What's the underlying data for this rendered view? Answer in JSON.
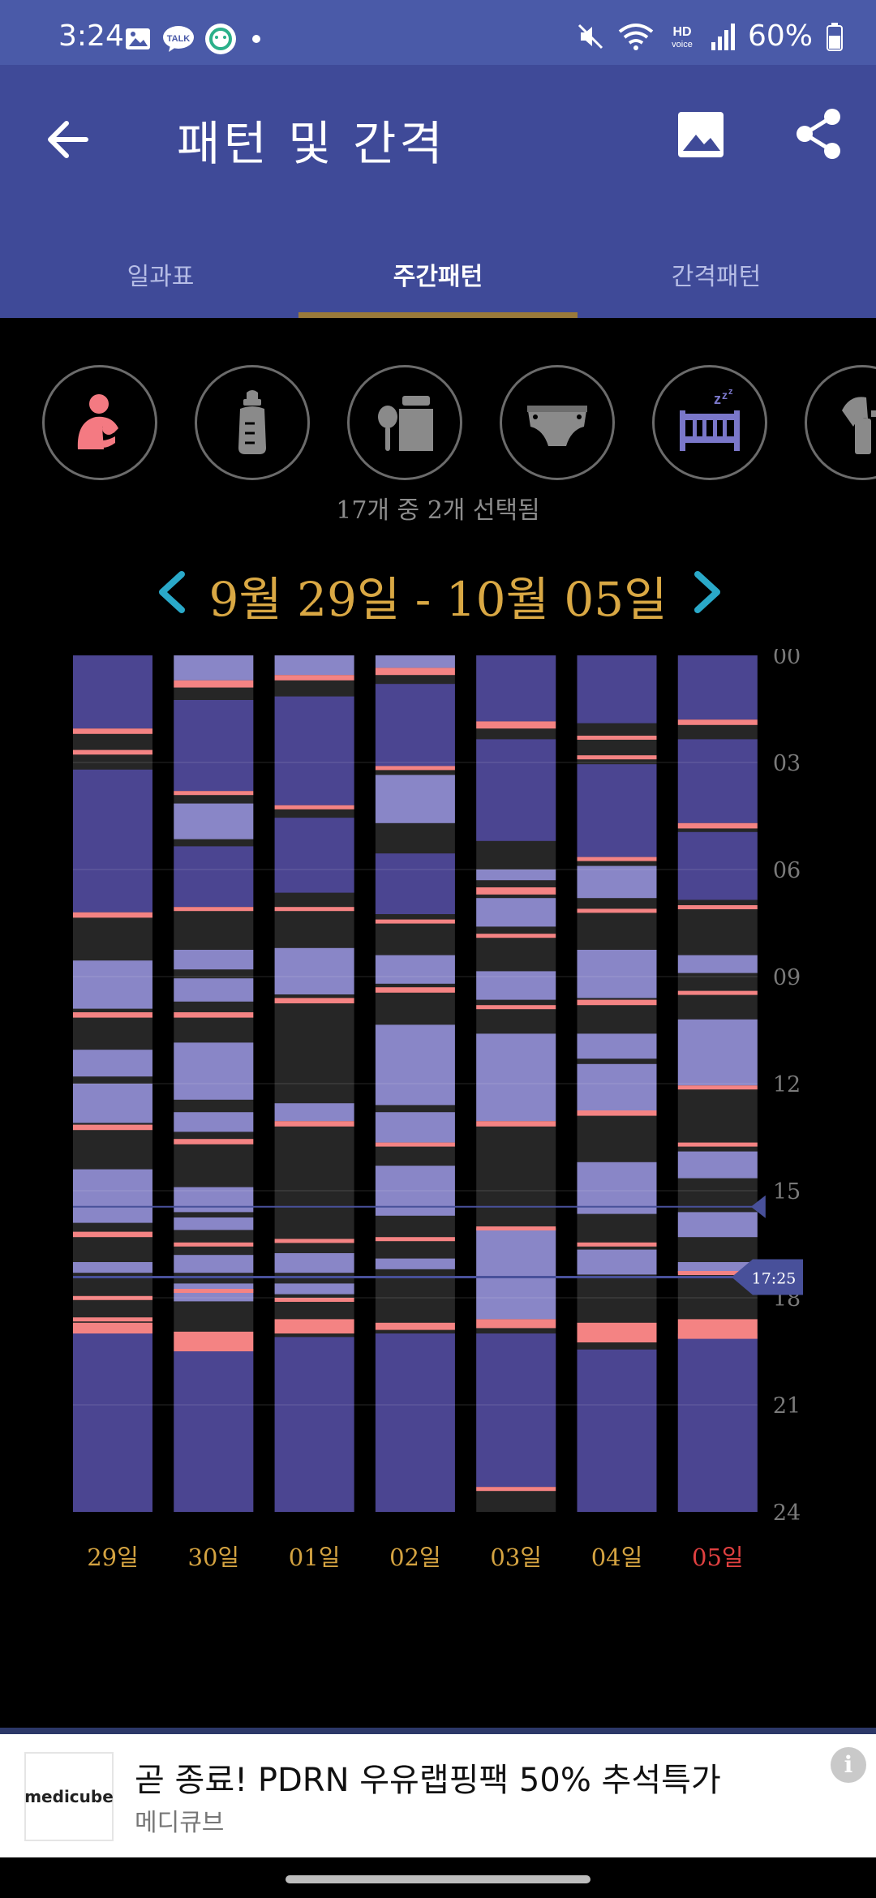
{
  "status_bar": {
    "time": "3:24",
    "talk_label": "TALK",
    "battery": "60%",
    "hd_label": "HD",
    "voice_label": "voice"
  },
  "app_bar": {
    "title": "패턴 및 간격"
  },
  "tabs": [
    {
      "label": "일과표",
      "active": false
    },
    {
      "label": "주간패턴",
      "active": true
    },
    {
      "label": "간격패턴",
      "active": false
    }
  ],
  "categories": {
    "icons": [
      "nursing-icon",
      "bottle-icon",
      "baby-food-icon",
      "diaper-icon",
      "sleep-crib-icon",
      "pump-icon"
    ],
    "selected_count_text": "17개 중 2개 선택됨"
  },
  "date_range": {
    "label": "9월 29일 - 10월 05일"
  },
  "chart_data": {
    "type": "bar",
    "categories": [
      "29일",
      "30일",
      "01일",
      "02일",
      "03일",
      "04일",
      "05일"
    ],
    "y_ticks": [
      "00",
      "03",
      "06",
      "09",
      "12",
      "15",
      "18",
      "21",
      "24"
    ],
    "ylim": [
      0,
      24
    ],
    "current_time_label": "17:25",
    "current_time_hours": 17.42,
    "colors": {
      "background": "#262626",
      "night_sleep": "#4b4591",
      "day_sleep": "#8986c7",
      "feed": "#f48383",
      "current_line": "#48509a",
      "today_label": "#e04040",
      "day_label": "#d4a341"
    },
    "series": {
      "sleep": [
        [
          [
            0,
            2.05
          ],
          [
            3.2,
            7.2
          ],
          [
            8.55,
            9.9
          ],
          [
            11.05,
            11.8
          ],
          [
            12.0,
            13.1
          ],
          [
            14.4,
            15.9
          ],
          [
            17.0,
            17.3
          ],
          [
            19.0,
            24.0
          ]
        ],
        [
          [
            0,
            0.7
          ],
          [
            1.25,
            3.8
          ],
          [
            4.15,
            5.15
          ],
          [
            5.35,
            7.05
          ],
          [
            8.25,
            8.8
          ],
          [
            9.05,
            9.7
          ],
          [
            10.85,
            12.45
          ],
          [
            12.8,
            13.35
          ],
          [
            14.9,
            15.6
          ],
          [
            15.75,
            16.1
          ],
          [
            16.8,
            17.3
          ],
          [
            17.6,
            18.1
          ],
          [
            19.5,
            24.0
          ]
        ],
        [
          [
            0,
            0.55
          ],
          [
            1.15,
            4.2
          ],
          [
            4.55,
            6.65
          ],
          [
            8.2,
            9.5
          ],
          [
            12.55,
            13.05
          ],
          [
            16.75,
            17.3
          ],
          [
            17.6,
            17.9
          ],
          [
            19.1,
            24.0
          ]
        ],
        [
          [
            0,
            0.35
          ],
          [
            0.8,
            3.1
          ],
          [
            3.35,
            4.7
          ],
          [
            5.55,
            7.25
          ],
          [
            8.4,
            9.2
          ],
          [
            10.35,
            12.6
          ],
          [
            12.8,
            13.65
          ],
          [
            14.3,
            15.7
          ],
          [
            16.9,
            17.2
          ],
          [
            19.0,
            24.0
          ]
        ],
        [
          [
            0,
            1.85
          ],
          [
            2.35,
            5.2
          ],
          [
            6.0,
            6.3
          ],
          [
            6.8,
            7.6
          ],
          [
            8.85,
            9.65
          ],
          [
            10.6,
            13.05
          ],
          [
            16.05,
            18.6
          ],
          [
            19.0,
            23.3
          ]
        ],
        [
          [
            0,
            1.9
          ],
          [
            3.05,
            5.65
          ],
          [
            5.9,
            6.8
          ],
          [
            8.25,
            9.6
          ],
          [
            10.6,
            11.3
          ],
          [
            11.45,
            12.75
          ],
          [
            14.2,
            15.65
          ],
          [
            16.65,
            17.35
          ],
          [
            19.45,
            24.0
          ]
        ],
        [
          [
            0,
            1.8
          ],
          [
            2.35,
            4.7
          ],
          [
            4.95,
            6.85
          ],
          [
            8.4,
            8.9
          ],
          [
            10.2,
            12.05
          ],
          [
            13.9,
            14.65
          ],
          [
            15.6,
            16.3
          ],
          [
            17.0,
            17.3
          ],
          [
            19.0,
            24.0
          ]
        ]
      ],
      "feeds": [
        [
          [
            2.05,
            2.2
          ],
          [
            2.65,
            2.78
          ],
          [
            7.2,
            7.35
          ],
          [
            10.0,
            10.15
          ],
          [
            13.15,
            13.3
          ],
          [
            16.15,
            16.3
          ],
          [
            17.95,
            18.05
          ],
          [
            18.55,
            18.65
          ],
          [
            18.7,
            19.0
          ]
        ],
        [
          [
            0.7,
            0.9
          ],
          [
            3.8,
            3.9
          ],
          [
            7.05,
            7.15
          ],
          [
            10.0,
            10.15
          ],
          [
            13.55,
            13.7
          ],
          [
            16.45,
            16.55
          ],
          [
            17.75,
            17.85
          ],
          [
            18.95,
            19.5
          ]
        ],
        [
          [
            0.55,
            0.7
          ],
          [
            4.2,
            4.3
          ],
          [
            7.05,
            7.15
          ],
          [
            9.6,
            9.75
          ],
          [
            13.05,
            13.2
          ],
          [
            16.35,
            16.45
          ],
          [
            18.0,
            18.1
          ],
          [
            18.6,
            19.0
          ]
        ],
        [
          [
            0.35,
            0.55
          ],
          [
            3.1,
            3.2
          ],
          [
            7.4,
            7.5
          ],
          [
            9.3,
            9.45
          ],
          [
            13.65,
            13.75
          ],
          [
            16.3,
            16.4
          ],
          [
            18.7,
            18.9
          ]
        ],
        [
          [
            1.85,
            2.05
          ],
          [
            6.5,
            6.7
          ],
          [
            7.8,
            7.88
          ],
          [
            9.8,
            9.9
          ],
          [
            13.05,
            13.2
          ],
          [
            16.0,
            16.1
          ],
          [
            18.6,
            18.85
          ],
          [
            23.3,
            23.4
          ]
        ],
        [
          [
            2.25,
            2.35
          ],
          [
            2.8,
            2.9
          ],
          [
            5.65,
            5.75
          ],
          [
            7.1,
            7.2
          ],
          [
            9.65,
            9.8
          ],
          [
            12.75,
            12.9
          ],
          [
            16.45,
            16.55
          ],
          [
            18.7,
            19.25
          ]
        ],
        [
          [
            1.8,
            1.95
          ],
          [
            4.7,
            4.85
          ],
          [
            7.0,
            7.1
          ],
          [
            9.4,
            9.5
          ],
          [
            12.05,
            12.15
          ],
          [
            13.65,
            13.75
          ],
          [
            17.25,
            17.35
          ],
          [
            18.6,
            19.15
          ]
        ]
      ]
    }
  },
  "ad": {
    "logo_text": "medicube",
    "headline": "곧 종료! PDRN 우유랩핑팩 50% 추석특가",
    "brand": "메디큐브",
    "info_label": "i"
  }
}
